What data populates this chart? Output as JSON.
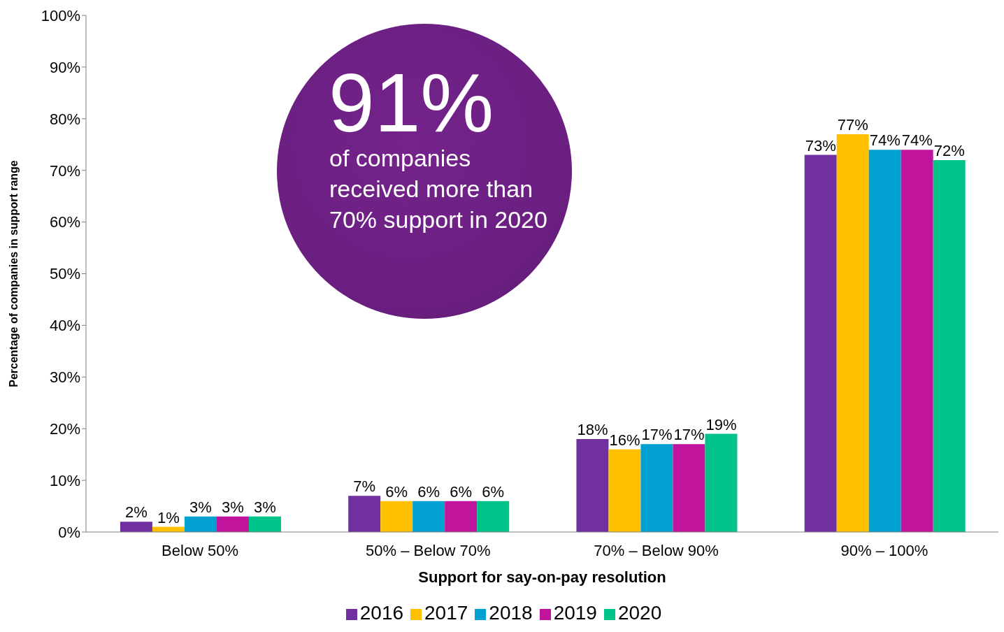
{
  "chart_data": {
    "type": "bar",
    "xlabel": "Support for say-on-pay resolution",
    "ylabel": "Percentage of companies in support range",
    "categories": [
      "Below 50%",
      "50% – Below 70%",
      "70% – Below 90%",
      "90% – 100%"
    ],
    "series": [
      {
        "name": "2016",
        "color": "#7030a0",
        "values": [
          2,
          7,
          18,
          73
        ],
        "value_labels": [
          "2%",
          "7%",
          "18%",
          "73%"
        ]
      },
      {
        "name": "2017",
        "color": "#ffc000",
        "values": [
          1,
          6,
          16,
          77
        ],
        "value_labels": [
          "1%",
          "6%",
          "16%",
          "77%"
        ]
      },
      {
        "name": "2018",
        "color": "#00a0d2",
        "values": [
          3,
          6,
          17,
          74
        ],
        "value_labels": [
          "3%",
          "6%",
          "17%",
          "74%"
        ]
      },
      {
        "name": "2019",
        "color": "#c0149c",
        "values": [
          3,
          6,
          17,
          74
        ],
        "value_labels": [
          "3%",
          "6%",
          "17%",
          "74%"
        ]
      },
      {
        "name": "2020",
        "color": "#00c389",
        "values": [
          3,
          6,
          19,
          72
        ],
        "value_labels": [
          "3%",
          "6%",
          "19%",
          "72%"
        ]
      }
    ],
    "ylim": [
      0,
      100
    ],
    "yticks": [
      {
        "value": 0,
        "label": "0%"
      },
      {
        "value": 10,
        "label": "10%"
      },
      {
        "value": 20,
        "label": "20%"
      },
      {
        "value": 30,
        "label": "30%"
      },
      {
        "value": 40,
        "label": "40%"
      },
      {
        "value": 50,
        "label": "50%"
      },
      {
        "value": 60,
        "label": "60%"
      },
      {
        "value": 70,
        "label": "70%"
      },
      {
        "value": 80,
        "label": "80%"
      },
      {
        "value": 90,
        "label": "90%"
      },
      {
        "value": 100,
        "label": "100%"
      }
    ],
    "grid": false,
    "legend": "bottom",
    "annotations": [
      "91%",
      "of companies received more than 70% support in 2020"
    ]
  }
}
